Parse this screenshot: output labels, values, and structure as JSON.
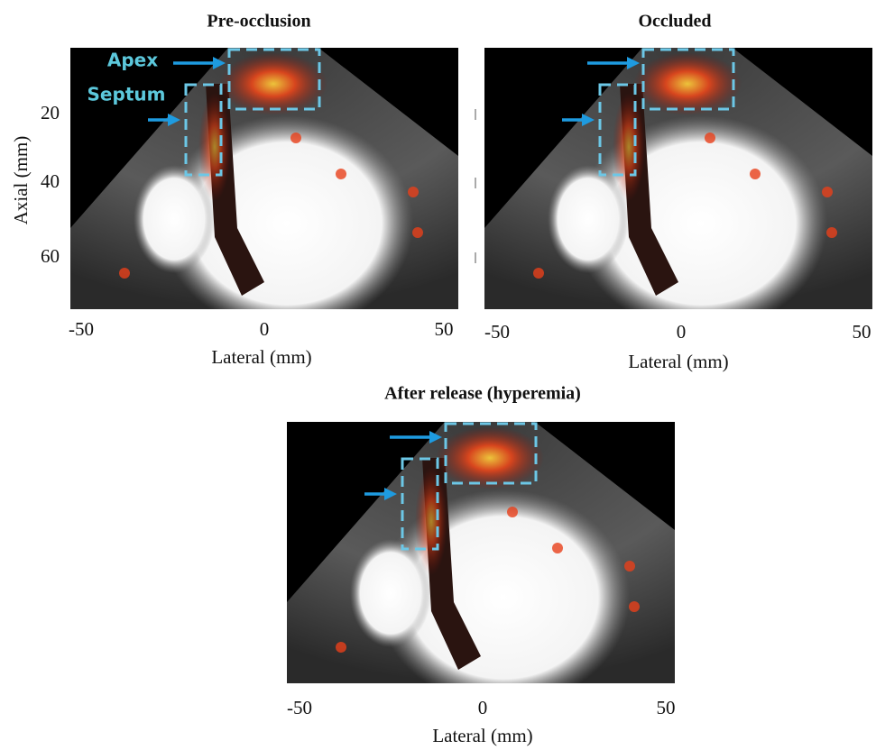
{
  "panels": [
    {
      "title": "Pre-occlusion",
      "xlabel": "Lateral (mm)",
      "ylabel": "Axial (mm)",
      "xticks": [
        -50,
        0,
        50
      ],
      "yticks": [
        20,
        40,
        60
      ],
      "annotations": [
        "Apex",
        "Septum"
      ]
    },
    {
      "title": "Occluded",
      "xlabel": "Lateral (mm)",
      "xticks": [
        -50,
        0,
        50
      ]
    },
    {
      "title": "After release (hyperemia)",
      "xlabel": "Lateral (mm)",
      "xticks": [
        -50,
        0,
        50
      ]
    }
  ]
}
